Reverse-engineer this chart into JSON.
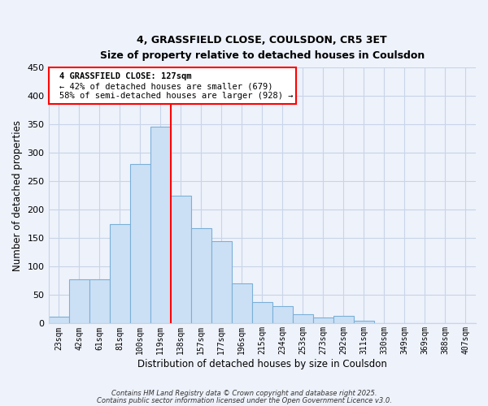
{
  "title": "4, GRASSFIELD CLOSE, COULSDON, CR5 3ET",
  "subtitle": "Size of property relative to detached houses in Coulsdon",
  "xlabel": "Distribution of detached houses by size in Coulsdon",
  "ylabel": "Number of detached properties",
  "bar_labels": [
    "23sqm",
    "42sqm",
    "61sqm",
    "81sqm",
    "100sqm",
    "119sqm",
    "138sqm",
    "157sqm",
    "177sqm",
    "196sqm",
    "215sqm",
    "234sqm",
    "253sqm",
    "273sqm",
    "292sqm",
    "311sqm",
    "330sqm",
    "349sqm",
    "369sqm",
    "388sqm",
    "407sqm"
  ],
  "bar_heights": [
    12,
    78,
    78,
    175,
    280,
    345,
    225,
    168,
    145,
    70,
    37,
    30,
    16,
    11,
    13,
    5,
    0,
    0,
    0,
    0,
    0
  ],
  "bar_color": "#cce0f5",
  "bar_edge_color": "#7ab0d8",
  "ylim": [
    0,
    450
  ],
  "yticks": [
    0,
    50,
    100,
    150,
    200,
    250,
    300,
    350,
    400,
    450
  ],
  "vline_x": 5.5,
  "vline_color": "red",
  "annotation_title": "4 GRASSFIELD CLOSE: 127sqm",
  "annotation_line1": "← 42% of detached houses are smaller (679)",
  "annotation_line2": "58% of semi-detached houses are larger (928) →",
  "footer1": "Contains HM Land Registry data © Crown copyright and database right 2025.",
  "footer2": "Contains public sector information licensed under the Open Government Licence v3.0.",
  "bg_color": "#eef2fb",
  "plot_bg_color": "#eef2fb",
  "grid_color": "#c8d4e8"
}
